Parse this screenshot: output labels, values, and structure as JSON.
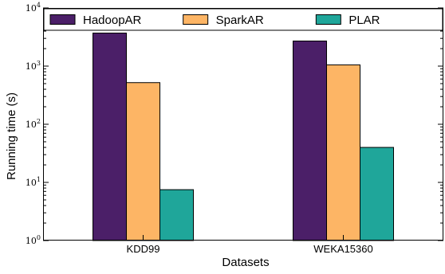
{
  "chart_data": {
    "type": "bar",
    "title": "",
    "xlabel": "Datasets",
    "ylabel": "Running time (s)",
    "yscale": "log",
    "ylim": [
      1,
      10000
    ],
    "yticks": [
      {
        "value": 1,
        "base": "10",
        "exp": "0"
      },
      {
        "value": 10,
        "base": "10",
        "exp": "1"
      },
      {
        "value": 100,
        "base": "10",
        "exp": "2"
      },
      {
        "value": 1000,
        "base": "10",
        "exp": "3"
      },
      {
        "value": 10000,
        "base": "10",
        "exp": "4"
      }
    ],
    "categories": [
      "KDD99",
      "WEKA15360"
    ],
    "series": [
      {
        "name": "HadoopAR",
        "color": "#4b1f68",
        "values": [
          3700,
          2700
        ]
      },
      {
        "name": "SparkAR",
        "color": "#fdb565",
        "values": [
          520,
          1050
        ]
      },
      {
        "name": "PLAR",
        "color": "#1fa69a",
        "values": [
          7.5,
          40
        ]
      }
    ],
    "legend": {
      "placement": "top",
      "columns": 3
    },
    "grid": false
  }
}
